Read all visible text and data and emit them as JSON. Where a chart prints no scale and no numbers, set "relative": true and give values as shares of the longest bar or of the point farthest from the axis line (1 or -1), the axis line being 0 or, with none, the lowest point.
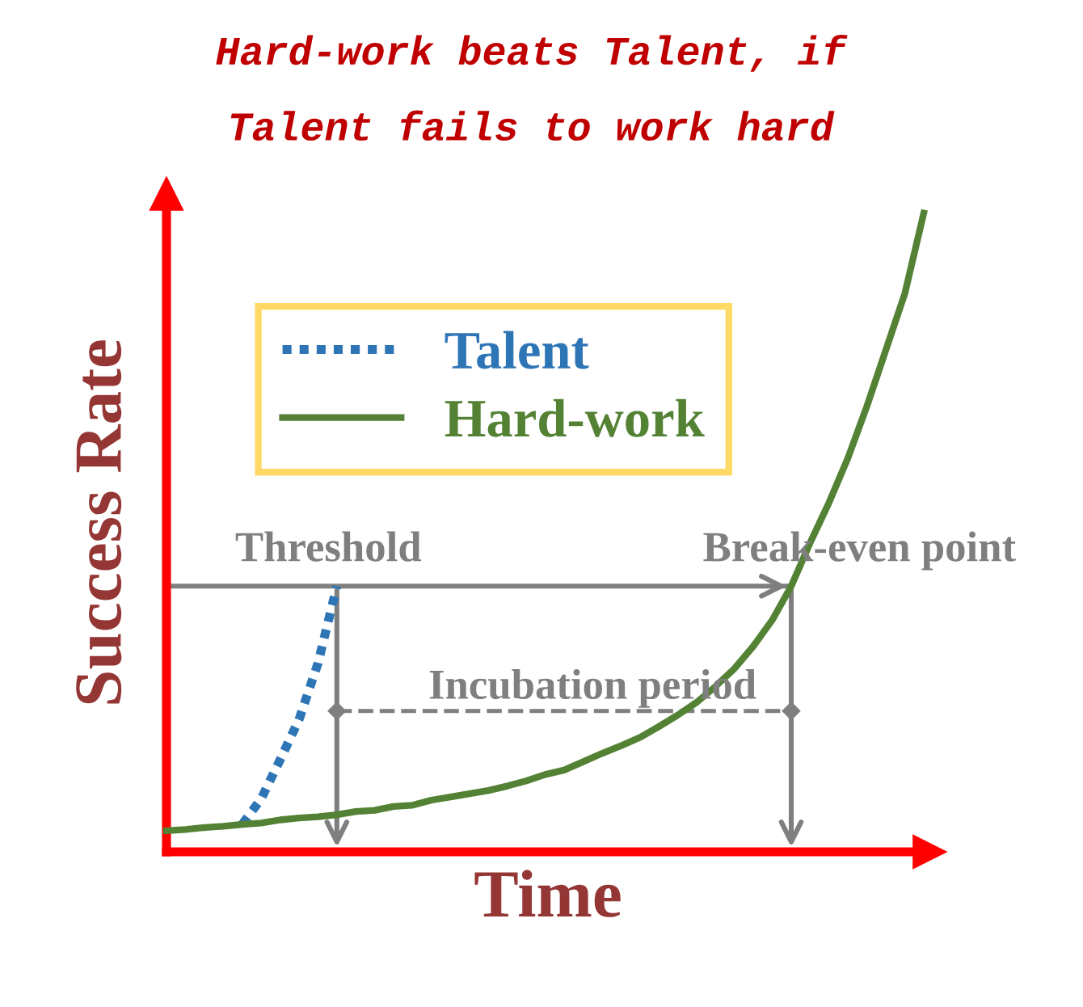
{
  "chart_data": {
    "type": "line",
    "relative": true,
    "title": "Hard-work beats Talent, if\nTalent fails to work hard",
    "xlabel": "Time",
    "ylabel": "Success Rate",
    "categories": [
      null,
      null,
      null,
      null,
      null,
      null,
      null,
      null,
      null,
      null,
      null,
      null,
      null,
      null,
      null,
      null,
      null,
      null,
      null,
      null,
      null,
      null,
      null,
      null,
      null,
      null,
      null,
      null,
      null,
      null,
      null,
      null,
      null,
      null,
      null,
      null,
      null,
      null,
      null,
      null,
      null
    ],
    "series": [
      {
        "name": "Talent",
        "color": "#2e75b6",
        "line_style": "dotted",
        "values": [
          null,
          null,
          null,
          null,
          0.043,
          0.083,
          0.144,
          0.207,
          0.295,
          0.416,
          null,
          null,
          null,
          null,
          null,
          null,
          null,
          null,
          null,
          null,
          null,
          null,
          null,
          null,
          null,
          null,
          null,
          null,
          null,
          null,
          null,
          null,
          null,
          null,
          null,
          null,
          null,
          null,
          null,
          null,
          null
        ]
      },
      {
        "name": "Hard-work",
        "color": "#548235",
        "line_style": "solid",
        "values": [
          0.033,
          0.035,
          0.038,
          0.04,
          0.043,
          0.045,
          0.05,
          0.053,
          0.055,
          0.058,
          0.063,
          0.065,
          0.071,
          0.073,
          0.081,
          0.086,
          0.091,
          0.096,
          0.103,
          0.111,
          0.121,
          0.128,
          0.141,
          0.154,
          0.166,
          0.179,
          0.196,
          0.214,
          0.234,
          0.259,
          0.287,
          0.322,
          0.363,
          0.416,
          0.484,
          0.547,
          0.617,
          0.698,
          0.786,
          0.874,
          1.0
        ]
      }
    ],
    "ref_lines": [
      {
        "axis": "y",
        "value": 0.416,
        "label": "Threshold",
        "color": "#7f7f7f"
      }
    ],
    "annotations": [
      "Break-even point",
      "Incubation period"
    ],
    "legend": "top left",
    "tick_labels": false
  }
}
